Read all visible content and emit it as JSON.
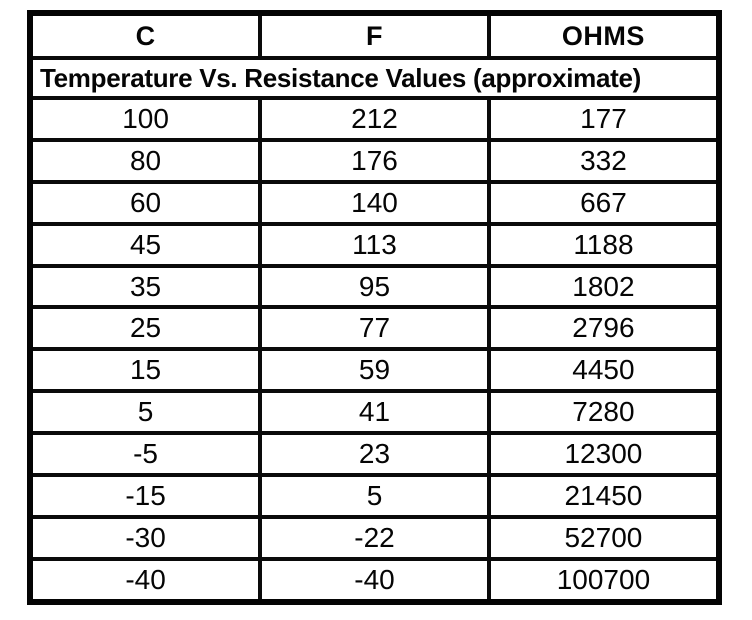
{
  "table": {
    "columns": [
      "C",
      "F",
      "OHMS"
    ],
    "title": "Temperature Vs. Resistance Values (approximate)",
    "rows": [
      [
        "100",
        "212",
        "177"
      ],
      [
        "80",
        "176",
        "332"
      ],
      [
        "60",
        "140",
        "667"
      ],
      [
        "45",
        "113",
        "1188"
      ],
      [
        "35",
        "95",
        "1802"
      ],
      [
        "25",
        "77",
        "2796"
      ],
      [
        "15",
        "59",
        "4450"
      ],
      [
        "5",
        "41",
        "7280"
      ],
      [
        "-5",
        "23",
        "12300"
      ],
      [
        "-15",
        "5",
        "21450"
      ],
      [
        "-30",
        "-22",
        "52700"
      ],
      [
        "-40",
        "-40",
        "100700"
      ]
    ]
  },
  "colors": {
    "ink": "#050505",
    "paper": "#ffffff"
  }
}
